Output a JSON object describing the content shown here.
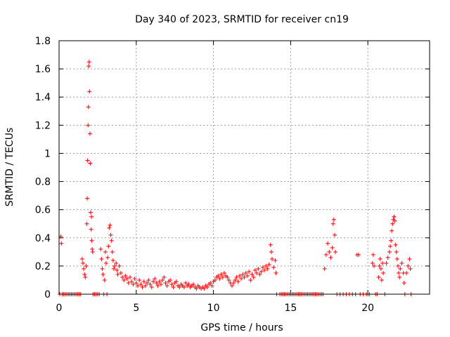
{
  "chart_data": {
    "type": "scatter",
    "title": "Day 340 of 2023, SRMTID for receiver cn19",
    "xlabel": "GPS time / hours",
    "ylabel": "SRMTID / TECUs",
    "xlim": [
      0,
      24
    ],
    "ylim": [
      0,
      1.8
    ],
    "xticks": [
      0,
      5,
      10,
      15,
      20
    ],
    "xtick_labels": [
      "0",
      "5",
      "10",
      "15",
      "20"
    ],
    "yticks": [
      0,
      0.2,
      0.4,
      0.6,
      0.8,
      1.0,
      1.2,
      1.4,
      1.6,
      1.8
    ],
    "ytick_labels": [
      "0",
      "0.2",
      "0.4",
      "0.6",
      "0.8",
      "1",
      "1.2",
      "1.4",
      "1.6",
      "1.8"
    ],
    "grid": true,
    "marker": "+",
    "series": [
      {
        "name": "SRMTID",
        "color": "#ff0000",
        "points": [
          [
            0.05,
            0.0
          ],
          [
            0.1,
            0.41
          ],
          [
            0.15,
            0.36
          ],
          [
            0.2,
            0.0
          ],
          [
            0.3,
            0.0
          ],
          [
            0.4,
            0.0
          ],
          [
            0.5,
            0.0
          ],
          [
            0.6,
            0.0
          ],
          [
            0.7,
            0.0
          ],
          [
            0.8,
            0.0
          ],
          [
            0.9,
            0.0
          ],
          [
            1.0,
            0.0
          ],
          [
            1.1,
            0.0
          ],
          [
            1.2,
            0.0
          ],
          [
            1.3,
            0.0
          ],
          [
            1.4,
            0.0
          ],
          [
            1.5,
            0.25
          ],
          [
            1.55,
            0.22
          ],
          [
            1.6,
            0.18
          ],
          [
            1.65,
            0.14
          ],
          [
            1.7,
            0.12
          ],
          [
            1.75,
            0.2
          ],
          [
            1.8,
            0.5
          ],
          [
            1.82,
            0.68
          ],
          [
            1.85,
            0.95
          ],
          [
            1.88,
            1.2
          ],
          [
            1.9,
            1.33
          ],
          [
            1.92,
            1.62
          ],
          [
            1.95,
            1.65
          ],
          [
            1.97,
            1.44
          ],
          [
            2.0,
            1.14
          ],
          [
            2.02,
            0.93
          ],
          [
            2.05,
            0.58
          ],
          [
            2.08,
            0.46
          ],
          [
            2.1,
            0.55
          ],
          [
            2.12,
            0.38
          ],
          [
            2.15,
            0.32
          ],
          [
            2.18,
            0.3
          ],
          [
            2.2,
            0.0
          ],
          [
            2.3,
            0.0
          ],
          [
            2.4,
            0.0
          ],
          [
            2.5,
            0.0
          ],
          [
            2.6,
            0.0
          ],
          [
            2.7,
            0.32
          ],
          [
            2.75,
            0.25
          ],
          [
            2.8,
            0.18
          ],
          [
            2.85,
            0.14
          ],
          [
            2.9,
            0.0
          ],
          [
            2.95,
            0.1
          ],
          [
            3.0,
            0.3
          ],
          [
            3.05,
            0.22
          ],
          [
            3.1,
            0.0
          ],
          [
            3.15,
            0.26
          ],
          [
            3.2,
            0.34
          ],
          [
            3.25,
            0.47
          ],
          [
            3.3,
            0.49
          ],
          [
            3.35,
            0.42
          ],
          [
            3.4,
            0.38
          ],
          [
            3.45,
            0.3
          ],
          [
            3.5,
            0.24
          ],
          [
            3.55,
            0.18
          ],
          [
            3.6,
            0.2
          ],
          [
            3.7,
            0.22
          ],
          [
            3.75,
            0.17
          ],
          [
            3.8,
            0.14
          ],
          [
            3.9,
            0.2
          ],
          [
            4.0,
            0.15
          ],
          [
            4.1,
            0.12
          ],
          [
            4.2,
            0.1
          ],
          [
            4.3,
            0.13
          ],
          [
            4.4,
            0.11
          ],
          [
            4.5,
            0.08
          ],
          [
            4.6,
            0.12
          ],
          [
            4.7,
            0.09
          ],
          [
            4.8,
            0.07
          ],
          [
            4.9,
            0.11
          ],
          [
            5.0,
            0.08
          ],
          [
            5.1,
            0.06
          ],
          [
            5.2,
            0.1
          ],
          [
            5.3,
            0.07
          ],
          [
            5.4,
            0.05
          ],
          [
            5.5,
            0.09
          ],
          [
            5.6,
            0.06
          ],
          [
            5.7,
            0.08
          ],
          [
            5.8,
            0.1
          ],
          [
            5.9,
            0.07
          ],
          [
            6.0,
            0.05
          ],
          [
            6.1,
            0.09
          ],
          [
            6.2,
            0.11
          ],
          [
            6.3,
            0.08
          ],
          [
            6.4,
            0.06
          ],
          [
            6.5,
            0.09
          ],
          [
            6.6,
            0.07
          ],
          [
            6.7,
            0.1
          ],
          [
            6.8,
            0.12
          ],
          [
            6.9,
            0.08
          ],
          [
            7.0,
            0.06
          ],
          [
            7.1,
            0.09
          ],
          [
            7.2,
            0.1
          ],
          [
            7.3,
            0.07
          ],
          [
            7.4,
            0.05
          ],
          [
            7.5,
            0.08
          ],
          [
            7.6,
            0.09
          ],
          [
            7.7,
            0.06
          ],
          [
            7.8,
            0.05
          ],
          [
            7.9,
            0.07
          ],
          [
            8.0,
            0.06
          ],
          [
            8.1,
            0.05
          ],
          [
            8.2,
            0.08
          ],
          [
            8.3,
            0.06
          ],
          [
            8.4,
            0.07
          ],
          [
            8.5,
            0.05
          ],
          [
            8.6,
            0.06
          ],
          [
            8.7,
            0.07
          ],
          [
            8.8,
            0.05
          ],
          [
            8.9,
            0.04
          ],
          [
            9.0,
            0.06
          ],
          [
            9.1,
            0.05
          ],
          [
            9.2,
            0.04
          ],
          [
            9.3,
            0.05
          ],
          [
            9.4,
            0.04
          ],
          [
            9.5,
            0.06
          ],
          [
            9.6,
            0.05
          ],
          [
            9.7,
            0.07
          ],
          [
            9.8,
            0.08
          ],
          [
            9.9,
            0.06
          ],
          [
            10.0,
            0.09
          ],
          [
            10.1,
            0.1
          ],
          [
            10.2,
            0.12
          ],
          [
            10.3,
            0.13
          ],
          [
            10.4,
            0.11
          ],
          [
            10.5,
            0.14
          ],
          [
            10.6,
            0.12
          ],
          [
            10.7,
            0.15
          ],
          [
            10.8,
            0.13
          ],
          [
            10.9,
            0.12
          ],
          [
            11.0,
            0.1
          ],
          [
            11.1,
            0.08
          ],
          [
            11.2,
            0.06
          ],
          [
            11.3,
            0.08
          ],
          [
            11.4,
            0.1
          ],
          [
            11.5,
            0.12
          ],
          [
            11.6,
            0.09
          ],
          [
            11.7,
            0.13
          ],
          [
            11.8,
            0.11
          ],
          [
            11.9,
            0.14
          ],
          [
            12.0,
            0.12
          ],
          [
            12.1,
            0.15
          ],
          [
            12.2,
            0.13
          ],
          [
            12.3,
            0.16
          ],
          [
            12.4,
            0.1
          ],
          [
            12.5,
            0.14
          ],
          [
            12.6,
            0.12
          ],
          [
            12.7,
            0.17
          ],
          [
            12.8,
            0.15
          ],
          [
            12.9,
            0.18
          ],
          [
            13.0,
            0.14
          ],
          [
            13.1,
            0.16
          ],
          [
            13.2,
            0.19
          ],
          [
            13.3,
            0.17
          ],
          [
            13.4,
            0.2
          ],
          [
            13.5,
            0.18
          ],
          [
            13.6,
            0.21
          ],
          [
            13.7,
            0.35
          ],
          [
            13.75,
            0.3
          ],
          [
            13.8,
            0.25
          ],
          [
            13.9,
            0.19
          ],
          [
            14.0,
            0.24
          ],
          [
            14.05,
            0.15
          ],
          [
            14.1,
            0.0
          ],
          [
            14.3,
            0.0
          ],
          [
            14.4,
            0.0
          ],
          [
            14.5,
            0.0
          ],
          [
            14.6,
            0.0
          ],
          [
            14.7,
            0.0
          ],
          [
            14.8,
            0.0
          ],
          [
            14.9,
            0.0
          ],
          [
            15.0,
            0.0
          ],
          [
            15.1,
            0.0
          ],
          [
            15.2,
            0.0
          ],
          [
            15.3,
            0.0
          ],
          [
            15.4,
            0.0
          ],
          [
            15.5,
            0.0
          ],
          [
            15.6,
            0.0
          ],
          [
            15.7,
            0.0
          ],
          [
            15.8,
            0.0
          ],
          [
            15.9,
            0.0
          ],
          [
            16.0,
            0.0
          ],
          [
            16.1,
            0.0
          ],
          [
            16.2,
            0.0
          ],
          [
            16.3,
            0.0
          ],
          [
            16.4,
            0.0
          ],
          [
            16.5,
            0.0
          ],
          [
            16.6,
            0.0
          ],
          [
            16.7,
            0.0
          ],
          [
            16.8,
            0.0
          ],
          [
            16.9,
            0.0
          ],
          [
            17.0,
            0.0
          ],
          [
            17.1,
            0.0
          ],
          [
            17.2,
            0.18
          ],
          [
            17.3,
            0.28
          ],
          [
            17.4,
            0.36
          ],
          [
            17.5,
            0.3
          ],
          [
            17.6,
            0.26
          ],
          [
            17.7,
            0.33
          ],
          [
            17.75,
            0.5
          ],
          [
            17.8,
            0.53
          ],
          [
            17.85,
            0.42
          ],
          [
            17.9,
            0.3
          ],
          [
            18.0,
            0.0
          ],
          [
            18.2,
            0.0
          ],
          [
            18.4,
            0.0
          ],
          [
            18.6,
            0.0
          ],
          [
            18.8,
            0.0
          ],
          [
            19.0,
            0.0
          ],
          [
            19.2,
            0.0
          ],
          [
            19.3,
            0.28
          ],
          [
            19.4,
            0.28
          ],
          [
            19.5,
            0.0
          ],
          [
            19.7,
            0.0
          ],
          [
            19.9,
            0.0
          ],
          [
            20.0,
            0.0
          ],
          [
            20.1,
            0.0
          ],
          [
            20.3,
            0.22
          ],
          [
            20.35,
            0.28
          ],
          [
            20.4,
            0.2
          ],
          [
            20.5,
            0.0
          ],
          [
            20.6,
            0.0
          ],
          [
            20.7,
            0.12
          ],
          [
            20.75,
            0.2
          ],
          [
            20.8,
            0.25
          ],
          [
            20.85,
            0.18
          ],
          [
            20.9,
            0.1
          ],
          [
            20.95,
            0.22
          ],
          [
            21.0,
            0.15
          ],
          [
            21.1,
            0.0
          ],
          [
            21.2,
            0.22
          ],
          [
            21.3,
            0.26
          ],
          [
            21.4,
            0.3
          ],
          [
            21.45,
            0.34
          ],
          [
            21.5,
            0.38
          ],
          [
            21.55,
            0.45
          ],
          [
            21.6,
            0.5
          ],
          [
            21.65,
            0.53
          ],
          [
            21.7,
            0.55
          ],
          [
            21.75,
            0.52
          ],
          [
            21.8,
            0.35
          ],
          [
            21.85,
            0.3
          ],
          [
            21.9,
            0.25
          ],
          [
            21.95,
            0.2
          ],
          [
            22.0,
            0.15
          ],
          [
            22.05,
            0.12
          ],
          [
            22.1,
            0.18
          ],
          [
            22.2,
            0.22
          ],
          [
            22.3,
            0.15
          ],
          [
            22.35,
            0.08
          ],
          [
            22.4,
            0.0
          ],
          [
            22.5,
            0.15
          ],
          [
            22.6,
            0.2
          ],
          [
            22.7,
            0.25
          ],
          [
            22.75,
            0.18
          ],
          [
            22.8,
            0.0
          ]
        ]
      }
    ]
  }
}
